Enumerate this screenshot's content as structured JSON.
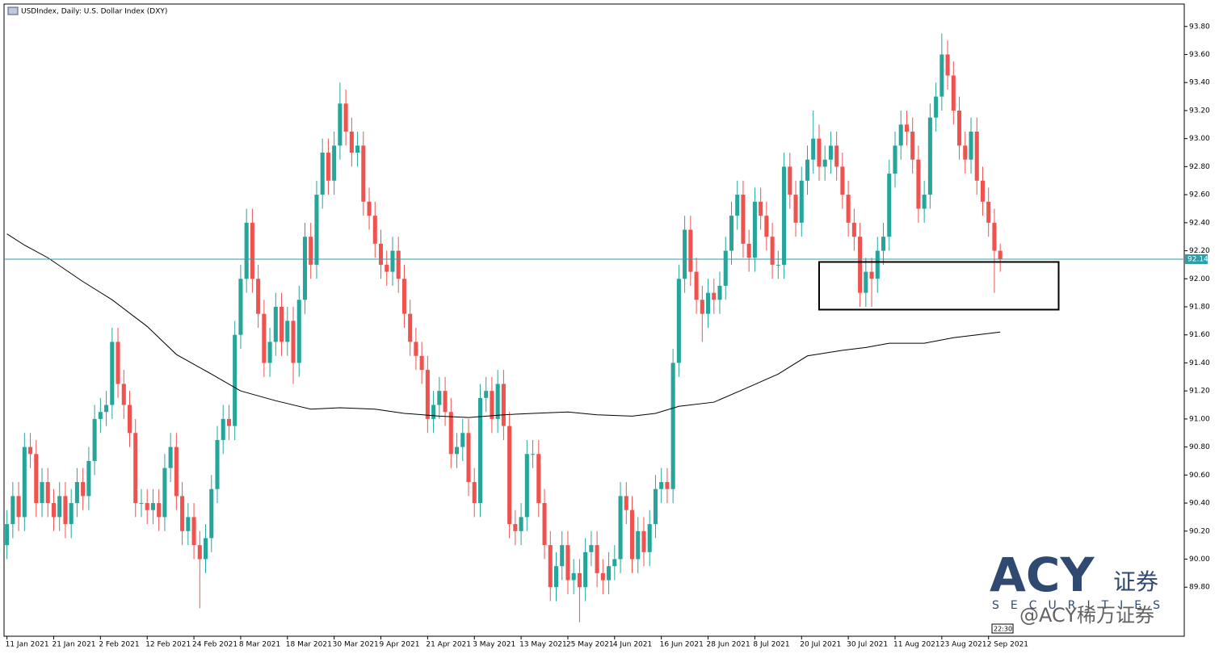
{
  "chart_data": {
    "type": "candlestick",
    "title": "USDIndex, Daily:  U.S. Dollar Index (DXY)",
    "up_color": "#26a69a",
    "down_color": "#ef5350",
    "open": [
      90.1,
      90.25,
      90.45,
      90.3,
      90.8,
      90.75,
      90.4,
      90.55,
      90.4,
      90.3,
      90.45,
      90.25,
      90.4,
      90.55,
      90.45,
      90.7,
      91.0,
      91.05,
      91.1,
      91.55,
      91.25,
      91.1,
      90.9,
      90.4,
      90.4,
      90.35,
      90.4,
      90.3,
      90.65,
      90.8,
      90.45,
      90.2,
      90.3,
      90.1,
      90.0,
      90.15,
      90.5,
      90.85,
      91.0,
      90.95,
      91.6,
      92.0,
      92.4,
      92.0,
      91.75,
      91.4,
      91.55,
      91.8,
      91.55,
      91.7,
      91.4,
      91.85,
      92.3,
      92.1,
      92.6,
      92.9,
      92.7,
      92.95,
      93.25,
      93.05,
      92.9,
      92.95,
      92.55,
      92.45,
      92.25,
      92.1,
      92.05,
      92.2,
      92.0,
      91.75,
      91.55,
      91.45,
      91.35,
      91.0,
      91.1,
      91.2,
      91.05,
      90.75,
      90.8,
      90.9,
      90.55,
      90.4,
      91.15,
      91.2,
      91.0,
      91.25,
      90.95,
      90.25,
      90.2,
      90.3,
      90.75,
      90.75,
      90.4,
      90.1,
      89.8,
      89.95,
      90.1,
      89.85,
      89.9,
      89.8,
      90.05,
      90.1,
      89.9,
      89.85,
      89.95,
      90.0,
      90.45,
      90.35,
      90.0,
      90.2,
      90.05,
      90.25,
      90.5,
      90.55,
      90.5,
      91.4,
      92.0,
      92.35,
      92.05,
      91.85,
      91.75,
      91.9,
      91.85,
      91.95,
      92.2,
      92.45,
      92.6,
      92.25,
      92.15,
      92.55,
      92.45,
      92.3,
      92.1,
      92.1,
      92.8,
      92.6,
      92.4,
      92.7,
      92.85,
      93.0,
      92.8,
      92.85,
      92.95,
      92.8,
      92.6,
      92.4,
      92.3,
      91.9,
      92.05,
      92.0,
      92.2,
      92.3,
      92.75,
      92.95,
      93.1,
      93.05,
      92.85,
      92.5,
      92.6,
      93.15,
      93.3,
      93.6,
      93.45,
      93.2,
      92.95,
      92.85,
      93.05,
      92.7,
      92.55,
      92.4,
      92.2
    ],
    "high": [
      90.35,
      90.55,
      90.55,
      90.9,
      90.9,
      90.85,
      90.65,
      90.65,
      90.5,
      90.55,
      90.55,
      90.5,
      90.65,
      90.65,
      90.8,
      91.1,
      91.15,
      91.2,
      91.65,
      91.65,
      91.35,
      91.2,
      91.0,
      90.5,
      90.5,
      90.5,
      90.5,
      90.75,
      90.9,
      90.9,
      90.55,
      90.4,
      90.4,
      90.2,
      90.25,
      90.6,
      90.95,
      91.1,
      91.1,
      91.7,
      92.1,
      92.5,
      92.5,
      92.1,
      91.85,
      91.65,
      91.9,
      91.9,
      91.8,
      91.8,
      91.95,
      92.4,
      92.4,
      92.7,
      93.0,
      93.0,
      93.05,
      93.4,
      93.35,
      93.15,
      93.05,
      93.05,
      92.65,
      92.55,
      92.35,
      92.2,
      92.3,
      92.3,
      92.1,
      91.85,
      91.65,
      91.55,
      91.45,
      91.2,
      91.3,
      91.3,
      91.15,
      90.9,
      91.0,
      91.0,
      90.65,
      91.25,
      91.3,
      91.3,
      91.35,
      91.35,
      91.05,
      90.35,
      90.4,
      90.85,
      90.85,
      90.85,
      90.5,
      90.2,
      90.05,
      90.2,
      90.2,
      90.0,
      90.0,
      90.15,
      90.2,
      90.2,
      90.0,
      90.05,
      90.1,
      90.55,
      90.55,
      90.45,
      90.3,
      90.3,
      90.35,
      90.6,
      90.65,
      90.65,
      91.5,
      92.1,
      92.45,
      92.45,
      92.15,
      91.95,
      92.0,
      92.0,
      92.05,
      92.3,
      92.55,
      92.7,
      92.7,
      92.35,
      92.65,
      92.65,
      92.55,
      92.4,
      92.2,
      92.9,
      92.9,
      92.7,
      92.8,
      92.95,
      93.2,
      93.1,
      92.95,
      93.05,
      93.05,
      92.9,
      92.7,
      92.5,
      92.4,
      92.15,
      92.15,
      92.3,
      92.4,
      92.85,
      93.05,
      93.2,
      93.2,
      93.15,
      92.95,
      92.7,
      93.25,
      93.4,
      93.75,
      93.7,
      93.55,
      93.3,
      93.05,
      93.15,
      93.15,
      92.8,
      92.65,
      92.5,
      92.25
    ],
    "low": [
      90.0,
      90.15,
      90.2,
      90.2,
      90.65,
      90.3,
      90.3,
      90.3,
      90.2,
      90.2,
      90.15,
      90.15,
      90.3,
      90.35,
      90.35,
      90.6,
      90.9,
      90.95,
      91.0,
      91.15,
      91.0,
      90.8,
      90.3,
      90.3,
      90.25,
      90.25,
      90.2,
      90.2,
      90.55,
      90.35,
      90.1,
      90.1,
      90.0,
      89.65,
      89.9,
      90.05,
      90.4,
      90.75,
      90.85,
      90.85,
      91.5,
      91.9,
      91.9,
      91.65,
      91.3,
      91.3,
      91.45,
      91.45,
      91.45,
      91.25,
      91.3,
      91.75,
      92.0,
      92.0,
      92.5,
      92.6,
      92.6,
      92.85,
      92.95,
      92.8,
      92.8,
      92.45,
      92.35,
      92.15,
      92.0,
      91.95,
      91.95,
      91.9,
      91.65,
      91.45,
      91.35,
      91.25,
      90.9,
      90.9,
      91.0,
      90.95,
      90.65,
      90.65,
      90.7,
      90.45,
      90.3,
      90.3,
      91.05,
      90.9,
      90.9,
      90.85,
      90.15,
      90.1,
      90.1,
      90.2,
      90.65,
      90.3,
      90.0,
      89.7,
      89.7,
      89.85,
      89.75,
      89.75,
      89.55,
      89.7,
      89.95,
      89.8,
      89.75,
      89.75,
      89.85,
      89.9,
      90.25,
      89.9,
      89.9,
      89.95,
      89.95,
      90.15,
      90.4,
      90.4,
      90.4,
      91.3,
      91.9,
      91.95,
      91.75,
      91.55,
      91.65,
      91.75,
      91.75,
      91.85,
      92.1,
      92.35,
      92.15,
      92.05,
      92.05,
      92.35,
      92.2,
      92.0,
      92.0,
      92.0,
      92.5,
      92.3,
      92.3,
      92.6,
      92.75,
      92.7,
      92.7,
      92.75,
      92.7,
      92.5,
      92.3,
      92.2,
      91.8,
      91.8,
      91.8,
      91.9,
      92.1,
      92.2,
      92.65,
      92.85,
      92.95,
      92.75,
      92.4,
      92.4,
      92.5,
      93.05,
      93.2,
      93.35,
      93.1,
      92.85,
      92.75,
      92.75,
      92.6,
      92.45,
      92.3,
      91.9,
      92.05
    ],
    "close": [
      90.25,
      90.45,
      90.3,
      90.8,
      90.75,
      90.4,
      90.55,
      90.4,
      90.3,
      90.45,
      90.25,
      90.4,
      90.55,
      90.45,
      90.7,
      91.0,
      91.05,
      91.1,
      91.55,
      91.25,
      91.1,
      90.9,
      90.4,
      90.4,
      90.35,
      90.4,
      90.3,
      90.65,
      90.8,
      90.45,
      90.2,
      90.3,
      90.1,
      90.0,
      90.15,
      90.5,
      90.85,
      91.0,
      90.95,
      91.6,
      92.0,
      92.4,
      92.0,
      91.75,
      91.4,
      91.55,
      91.8,
      91.55,
      91.7,
      91.4,
      91.85,
      92.3,
      92.1,
      92.6,
      92.9,
      92.7,
      92.95,
      93.25,
      93.05,
      92.9,
      92.95,
      92.55,
      92.45,
      92.25,
      92.1,
      92.05,
      92.2,
      92.0,
      91.75,
      91.55,
      91.45,
      91.35,
      91.0,
      91.1,
      91.2,
      91.05,
      90.75,
      90.8,
      90.9,
      90.55,
      90.4,
      91.15,
      91.2,
      91.0,
      91.25,
      90.95,
      90.25,
      90.2,
      90.3,
      90.75,
      90.75,
      90.4,
      90.1,
      89.8,
      89.95,
      90.1,
      89.85,
      89.9,
      89.8,
      90.05,
      90.1,
      89.9,
      89.85,
      89.95,
      90.0,
      90.45,
      90.35,
      90.0,
      90.2,
      90.05,
      90.25,
      90.5,
      90.55,
      90.5,
      91.4,
      92.0,
      92.35,
      92.05,
      91.85,
      91.75,
      91.9,
      91.85,
      91.95,
      92.2,
      92.45,
      92.6,
      92.25,
      92.15,
      92.55,
      92.45,
      92.3,
      92.1,
      92.1,
      92.8,
      92.6,
      92.4,
      92.7,
      92.85,
      93.0,
      92.8,
      92.85,
      92.95,
      92.8,
      92.6,
      92.4,
      92.3,
      91.9,
      92.05,
      92.0,
      92.2,
      92.3,
      92.75,
      92.95,
      93.1,
      93.05,
      92.85,
      92.5,
      92.6,
      93.15,
      93.3,
      93.6,
      93.45,
      93.2,
      92.95,
      92.85,
      93.05,
      92.7,
      92.55,
      92.4,
      92.2,
      92.14
    ],
    "ma": {
      "color": "#000000",
      "x": [
        0,
        3,
        7,
        13,
        18,
        24,
        29,
        35,
        40,
        46,
        52,
        57,
        63,
        68,
        74,
        79,
        85,
        90,
        96,
        101,
        107,
        111,
        115,
        121,
        126,
        132,
        137,
        143,
        147,
        151,
        157,
        162,
        170
      ],
      "values": [
        92.32,
        92.24,
        92.15,
        91.98,
        91.85,
        91.66,
        91.46,
        91.32,
        91.2,
        91.13,
        91.07,
        91.08,
        91.07,
        91.04,
        91.02,
        91.01,
        91.03,
        91.04,
        91.05,
        91.03,
        91.02,
        91.04,
        91.09,
        91.12,
        91.21,
        91.32,
        91.45,
        91.49,
        91.51,
        91.54,
        91.54,
        91.58,
        91.62
      ]
    },
    "hline": 92.14,
    "hline_color": "#2e9ea6",
    "box": {
      "x": [
        139,
        180
      ],
      "y": [
        91.78,
        92.12
      ]
    },
    "xlim": [
      -0.5,
      201.5
    ],
    "ylim": [
      89.45,
      93.96
    ],
    "yticks": [
      {
        "value": 89.8,
        "label": "89.80"
      },
      {
        "value": 90.0,
        "label": "90.00"
      },
      {
        "value": 90.2,
        "label": "90.20"
      },
      {
        "value": 90.4,
        "label": "90.40"
      },
      {
        "value": 90.6,
        "label": "90.60"
      },
      {
        "value": 90.8,
        "label": "90.80"
      },
      {
        "value": 91.0,
        "label": "91.00"
      },
      {
        "value": 91.2,
        "label": "91.20"
      },
      {
        "value": 91.4,
        "label": "91.40"
      },
      {
        "value": 91.6,
        "label": "91.60"
      },
      {
        "value": 91.8,
        "label": "91.80"
      },
      {
        "value": 92.0,
        "label": "92.00"
      },
      {
        "value": 92.2,
        "label": "92.20"
      },
      {
        "value": 92.4,
        "label": "92.40"
      },
      {
        "value": 92.6,
        "label": "92.60"
      },
      {
        "value": 92.8,
        "label": "92.80"
      },
      {
        "value": 93.0,
        "label": "93.00"
      },
      {
        "value": 93.2,
        "label": "93.20"
      },
      {
        "value": 93.4,
        "label": "93.40"
      },
      {
        "value": 93.6,
        "label": "93.60"
      },
      {
        "value": 93.8,
        "label": "93.80"
      }
    ],
    "xticks": [
      {
        "value": 0,
        "label": "11 Jan 2021"
      },
      {
        "value": 8,
        "label": "21 Jan 2021"
      },
      {
        "value": 16,
        "label": "2 Feb 2021"
      },
      {
        "value": 24,
        "label": "12 Feb 2021"
      },
      {
        "value": 32,
        "label": "24 Feb 2021"
      },
      {
        "value": 40,
        "label": "8 Mar 2021"
      },
      {
        "value": 48,
        "label": "18 Mar 2021"
      },
      {
        "value": 56,
        "label": "30 Mar 2021"
      },
      {
        "value": 64,
        "label": "9 Apr 2021"
      },
      {
        "value": 72,
        "label": "21 Apr 2021"
      },
      {
        "value": 80,
        "label": "3 May 2021"
      },
      {
        "value": 88,
        "label": "13 May 2021"
      },
      {
        "value": 96,
        "label": "25 May 2021"
      },
      {
        "value": 104,
        "label": "4 Jun 2021"
      },
      {
        "value": 112,
        "label": "16 Jun 2021"
      },
      {
        "value": 120,
        "label": "28 Jun 2021"
      },
      {
        "value": 128,
        "label": "8 Jul 2021"
      },
      {
        "value": 136,
        "label": "20 Jul 2021"
      },
      {
        "value": 144,
        "label": "30 Jul 2021"
      },
      {
        "value": 152,
        "label": "11 Aug 2021"
      },
      {
        "value": 160,
        "label": "23 Aug 2021"
      },
      {
        "value": 168,
        "label": "2 Sep 2021"
      }
    ],
    "time_box": "22:30",
    "watermark": {
      "brand": "ACY",
      "cn": "证券",
      "sub": "SECURITIES",
      "handle": "@ACY稀万证券"
    }
  }
}
